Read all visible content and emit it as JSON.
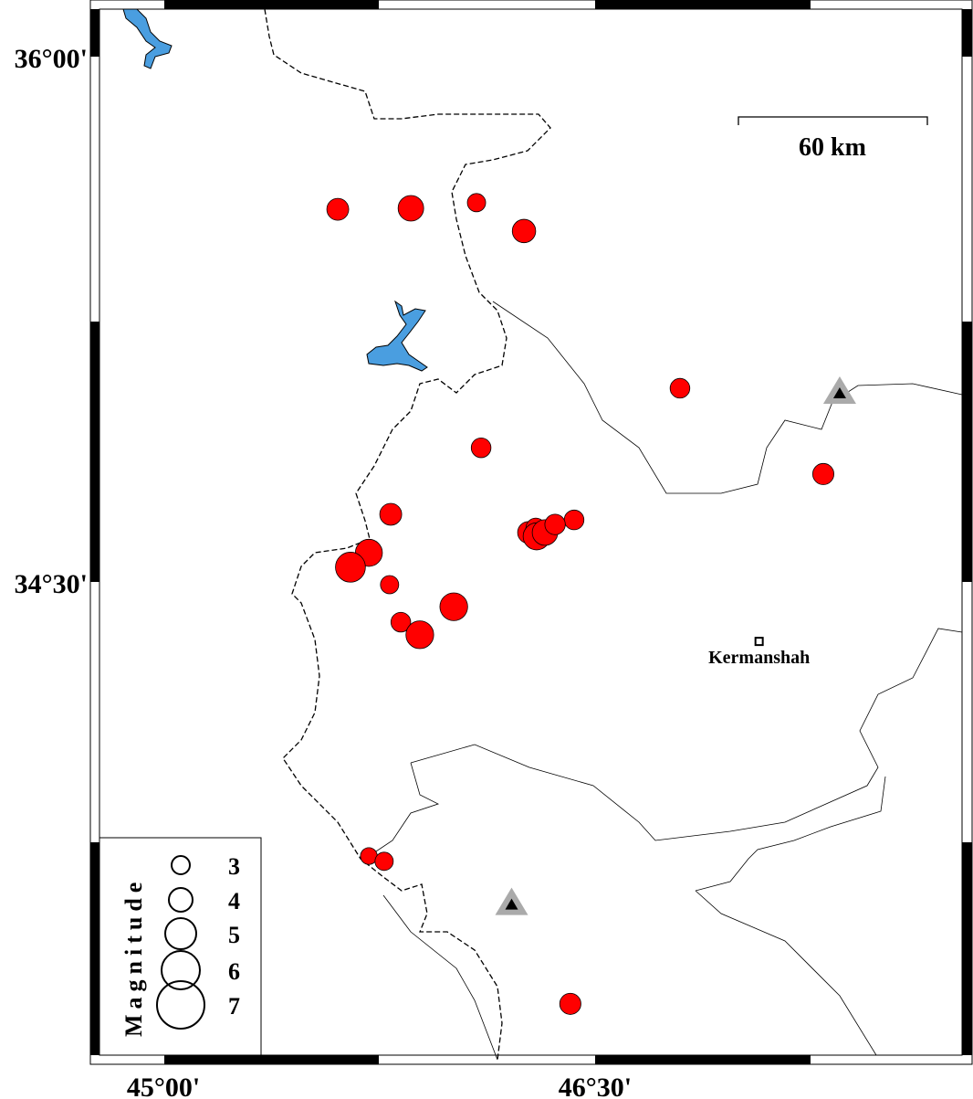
{
  "map": {
    "lon_range": [
      44.8,
      47.8
    ],
    "lat_range": [
      33.0,
      36.16
    ],
    "x_ticks": [
      {
        "value": 45.0,
        "label": "45°00'"
      },
      {
        "value": 46.5,
        "label": "46°30'"
      }
    ],
    "y_ticks": [
      {
        "value": 36.0,
        "label": "36°00'"
      },
      {
        "value": 34.5,
        "label": "34°30'"
      }
    ],
    "scale_bar": {
      "label": "60 km"
    },
    "city": {
      "name": "Kermanshah",
      "lon": 47.07,
      "lat": 34.33
    },
    "volcanoes": [
      {
        "lon": 47.35,
        "lat": 35.04
      },
      {
        "lon": 46.21,
        "lat": 33.58
      }
    ],
    "colors": {
      "earthquake": "#ff0000",
      "water": "#4a9ee0",
      "volcano_outer": "#aaaaaa",
      "volcano_inner": "#000000"
    },
    "earthquakes": [
      {
        "lon": 45.606,
        "lat": 35.564,
        "mag": 3.5
      },
      {
        "lon": 45.86,
        "lat": 35.567,
        "mag": 4.0
      },
      {
        "lon": 46.088,
        "lat": 35.583,
        "mag": 3.0
      },
      {
        "lon": 46.253,
        "lat": 35.502,
        "mag": 3.7
      },
      {
        "lon": 46.795,
        "lat": 35.053,
        "mag": 3.2
      },
      {
        "lon": 46.104,
        "lat": 34.883,
        "mag": 3.2
      },
      {
        "lon": 47.293,
        "lat": 34.808,
        "mag": 3.4
      },
      {
        "lon": 45.79,
        "lat": 34.693,
        "mag": 3.5
      },
      {
        "lon": 46.427,
        "lat": 34.677,
        "mag": 3.2
      },
      {
        "lon": 45.714,
        "lat": 34.583,
        "mag": 4.2
      },
      {
        "lon": 45.65,
        "lat": 34.542,
        "mag": 4.6
      },
      {
        "lon": 45.786,
        "lat": 34.492,
        "mag": 3.0
      },
      {
        "lon": 46.009,
        "lat": 34.429,
        "mag": 4.3
      },
      {
        "lon": 45.825,
        "lat": 34.385,
        "mag": 3.2
      },
      {
        "lon": 45.891,
        "lat": 34.349,
        "mag": 4.3
      },
      {
        "lon": 46.269,
        "lat": 34.641,
        "mag": 3.5
      },
      {
        "lon": 46.294,
        "lat": 34.654,
        "mag": 3.2
      },
      {
        "lon": 46.297,
        "lat": 34.63,
        "mag": 4.2
      },
      {
        "lon": 46.326,
        "lat": 34.641,
        "mag": 4.0
      },
      {
        "lon": 46.361,
        "lat": 34.664,
        "mag": 3.3
      },
      {
        "lon": 45.714,
        "lat": 33.717,
        "mag": 2.8
      },
      {
        "lon": 45.767,
        "lat": 33.702,
        "mag": 3.0
      },
      {
        "lon": 46.414,
        "lat": 33.295,
        "mag": 3.4
      }
    ]
  },
  "legend": {
    "title": "Magnitude",
    "items": [
      {
        "mag": 3,
        "label": "3"
      },
      {
        "mag": 4,
        "label": "4"
      },
      {
        "mag": 5,
        "label": "5"
      },
      {
        "mag": 6,
        "label": "6"
      },
      {
        "mag": 7,
        "label": "7"
      }
    ]
  }
}
